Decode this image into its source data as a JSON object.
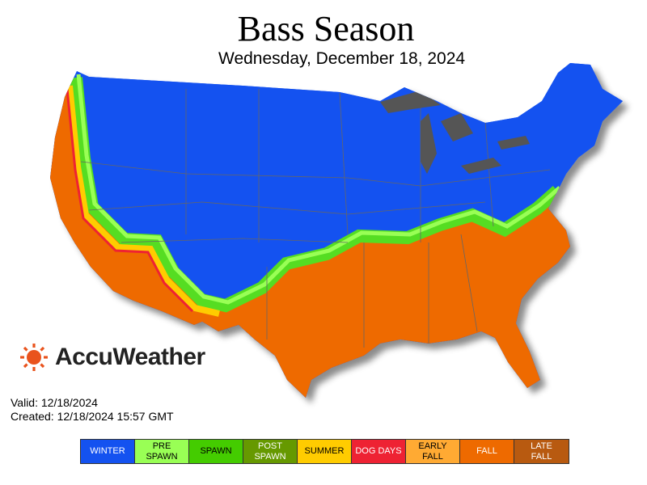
{
  "header": {
    "title": "Bass Season",
    "subtitle": "Wednesday, December 18, 2024"
  },
  "brand": {
    "name": "AccuWeather"
  },
  "info": {
    "valid": "Valid: 12/18/2024",
    "created": "Created: 12/18/2024 15:57 GMT"
  },
  "legend": {
    "items": [
      {
        "lines": [
          "WINTER"
        ],
        "color": "#1452f0",
        "text_color": "#ffffff"
      },
      {
        "lines": [
          "PRE",
          "SPAWN"
        ],
        "color": "#99ff55",
        "text_color": "#000000"
      },
      {
        "lines": [
          "SPAWN"
        ],
        "color": "#44cc00",
        "text_color": "#000000"
      },
      {
        "lines": [
          "POST",
          "SPAWN"
        ],
        "color": "#669900",
        "text_color": "#ffffff"
      },
      {
        "lines": [
          "SUMMER"
        ],
        "color": "#ffcc00",
        "text_color": "#000000"
      },
      {
        "lines": [
          "DOG DAYS"
        ],
        "color": "#ee2233",
        "text_color": "#ffffff"
      },
      {
        "lines": [
          "EARLY",
          "FALL"
        ],
        "color": "#ffaa33",
        "text_color": "#000000"
      },
      {
        "lines": [
          "FALL"
        ],
        "color": "#ee6a00",
        "text_color": "#ffffff"
      },
      {
        "lines": [
          "LATE",
          "FALL"
        ],
        "color": "#b85a10",
        "text_color": "#ffffff"
      }
    ]
  }
}
